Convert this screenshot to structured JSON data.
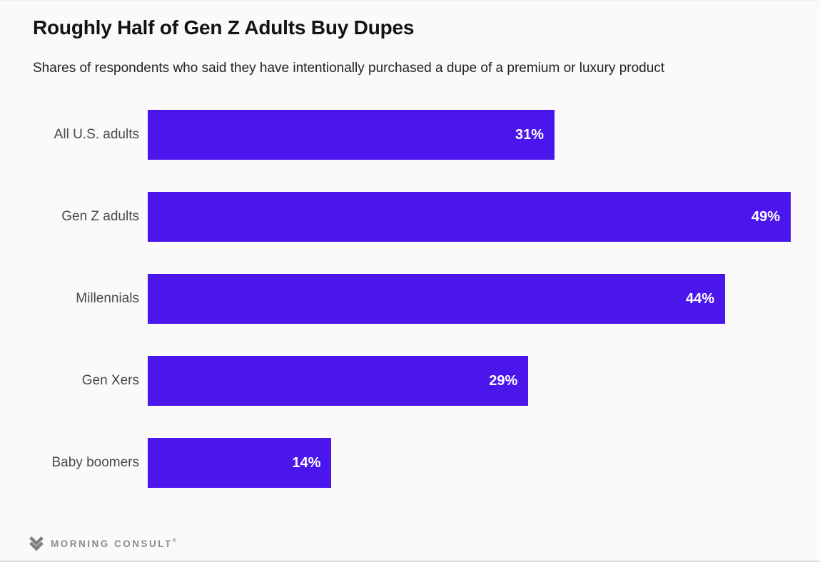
{
  "header": {
    "title": "Roughly Half of Gen Z Adults Buy Dupes",
    "subtitle": "Shares of respondents who said they have intentionally purchased a dupe of a premium or luxury product"
  },
  "colors": {
    "bar": "#4A16EC",
    "background": "#fbfafa",
    "title_text": "#131313",
    "subtitle_text": "#222222",
    "label_text": "#4a4a4a",
    "value_text": "#ffffff",
    "logo": "#8c8c8c"
  },
  "chart_data": {
    "type": "bar",
    "orientation": "horizontal",
    "title": "Roughly Half of Gen Z Adults Buy Dupes",
    "subtitle": "Shares of respondents who said they have intentionally purchased a dupe of a premium or luxury product",
    "categories": [
      "All U.S. adults",
      "Gen Z adults",
      "Millennials",
      "Gen Xers",
      "Baby boomers"
    ],
    "values": [
      31,
      49,
      44,
      29,
      14
    ],
    "value_suffix": "%",
    "xlabel": "",
    "ylabel": "",
    "xlim": [
      0,
      49
    ],
    "grid": false,
    "legend": false,
    "value_labels": "inside-end"
  },
  "footer": {
    "brand": "MORNING CONSULT",
    "trademark": "®",
    "logo_icon": "morning-consult-m-mark"
  }
}
